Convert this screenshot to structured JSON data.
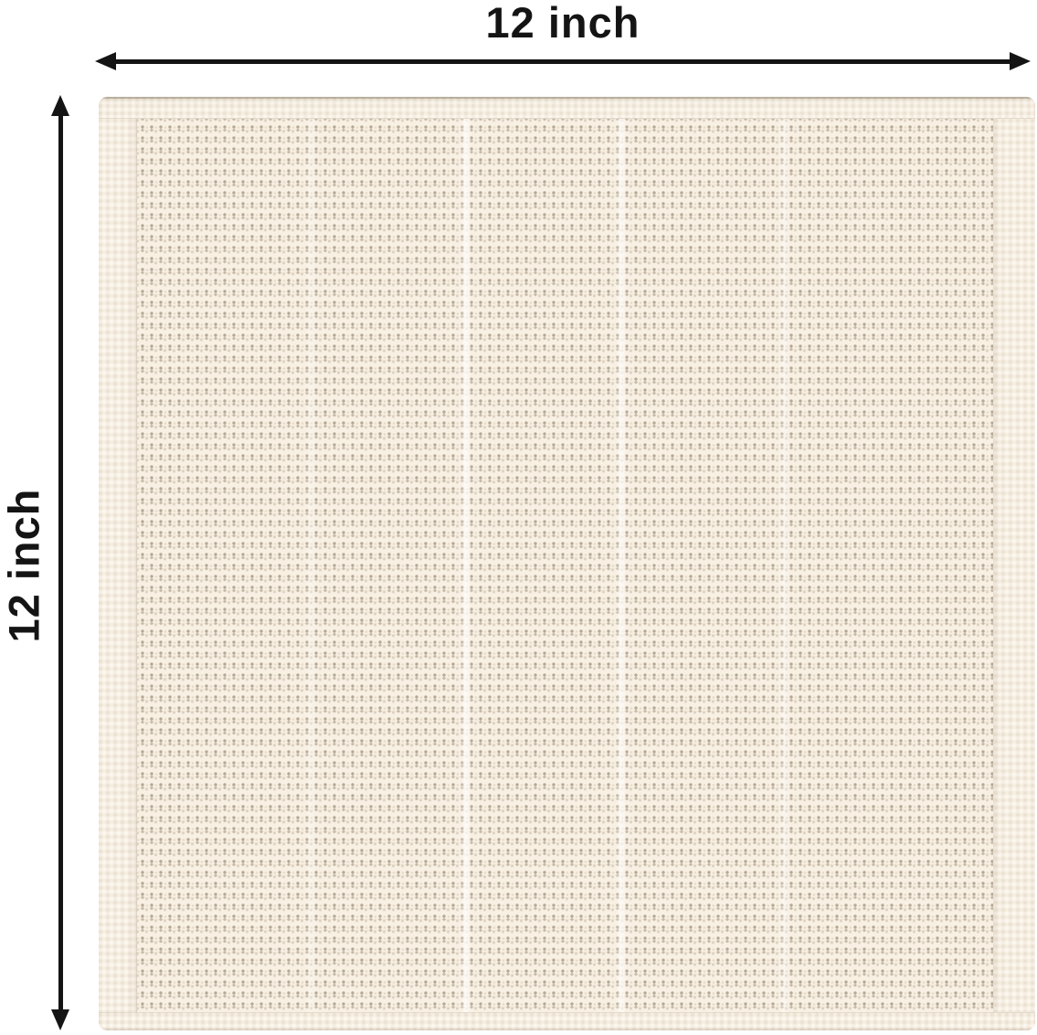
{
  "diagram": {
    "type": "product-dimension-diagram",
    "subject": "cream waffle-weave cloth swatch",
    "width_label": "12 inch",
    "height_label": "12 inch"
  },
  "colors": {
    "background": "#ffffff",
    "ink": "#141414",
    "fabric_base": "#f8f0e3",
    "fabric_hem": "#f6eee1",
    "fabric_dot": "#8d7d68",
    "fabric_edge_line": "#b9ac98"
  }
}
